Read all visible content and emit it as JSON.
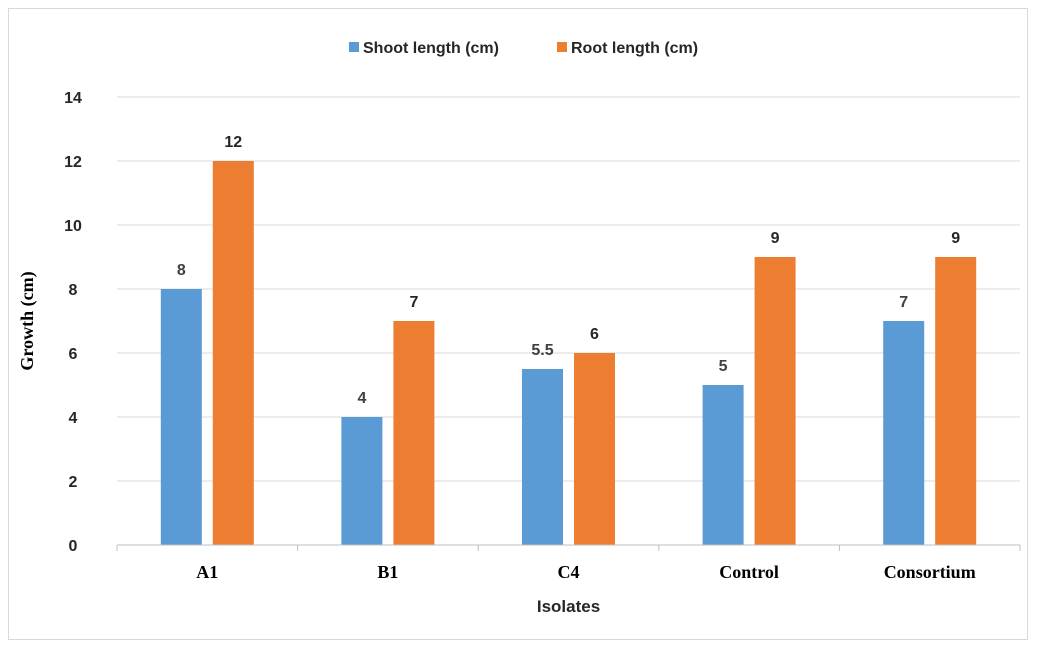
{
  "chart_data": {
    "type": "bar",
    "title": "",
    "xlabel": "Isolates",
    "ylabel": "Growth (cm)",
    "categories": [
      "A1",
      "B1",
      "C4",
      "Control",
      "Consortium"
    ],
    "series": [
      {
        "name": "Shoot length (cm)",
        "color": "#5b9bd5",
        "values": [
          8,
          4,
          5.5,
          5,
          7
        ],
        "labels": [
          "8",
          "4",
          "5.5",
          "5",
          "7"
        ]
      },
      {
        "name": "Root length (cm)",
        "color": "#ed7d31",
        "values": [
          12,
          7,
          6,
          9,
          9
        ],
        "labels": [
          "12",
          "7",
          "6",
          "9",
          "9"
        ]
      }
    ],
    "ylim": [
      0,
      14
    ],
    "yticks": [
      "0",
      "2",
      "4",
      "6",
      "8",
      "10",
      "12",
      "14"
    ],
    "grid": true,
    "legend_position": "top-center",
    "gridline_color": "#d9d9d9"
  }
}
